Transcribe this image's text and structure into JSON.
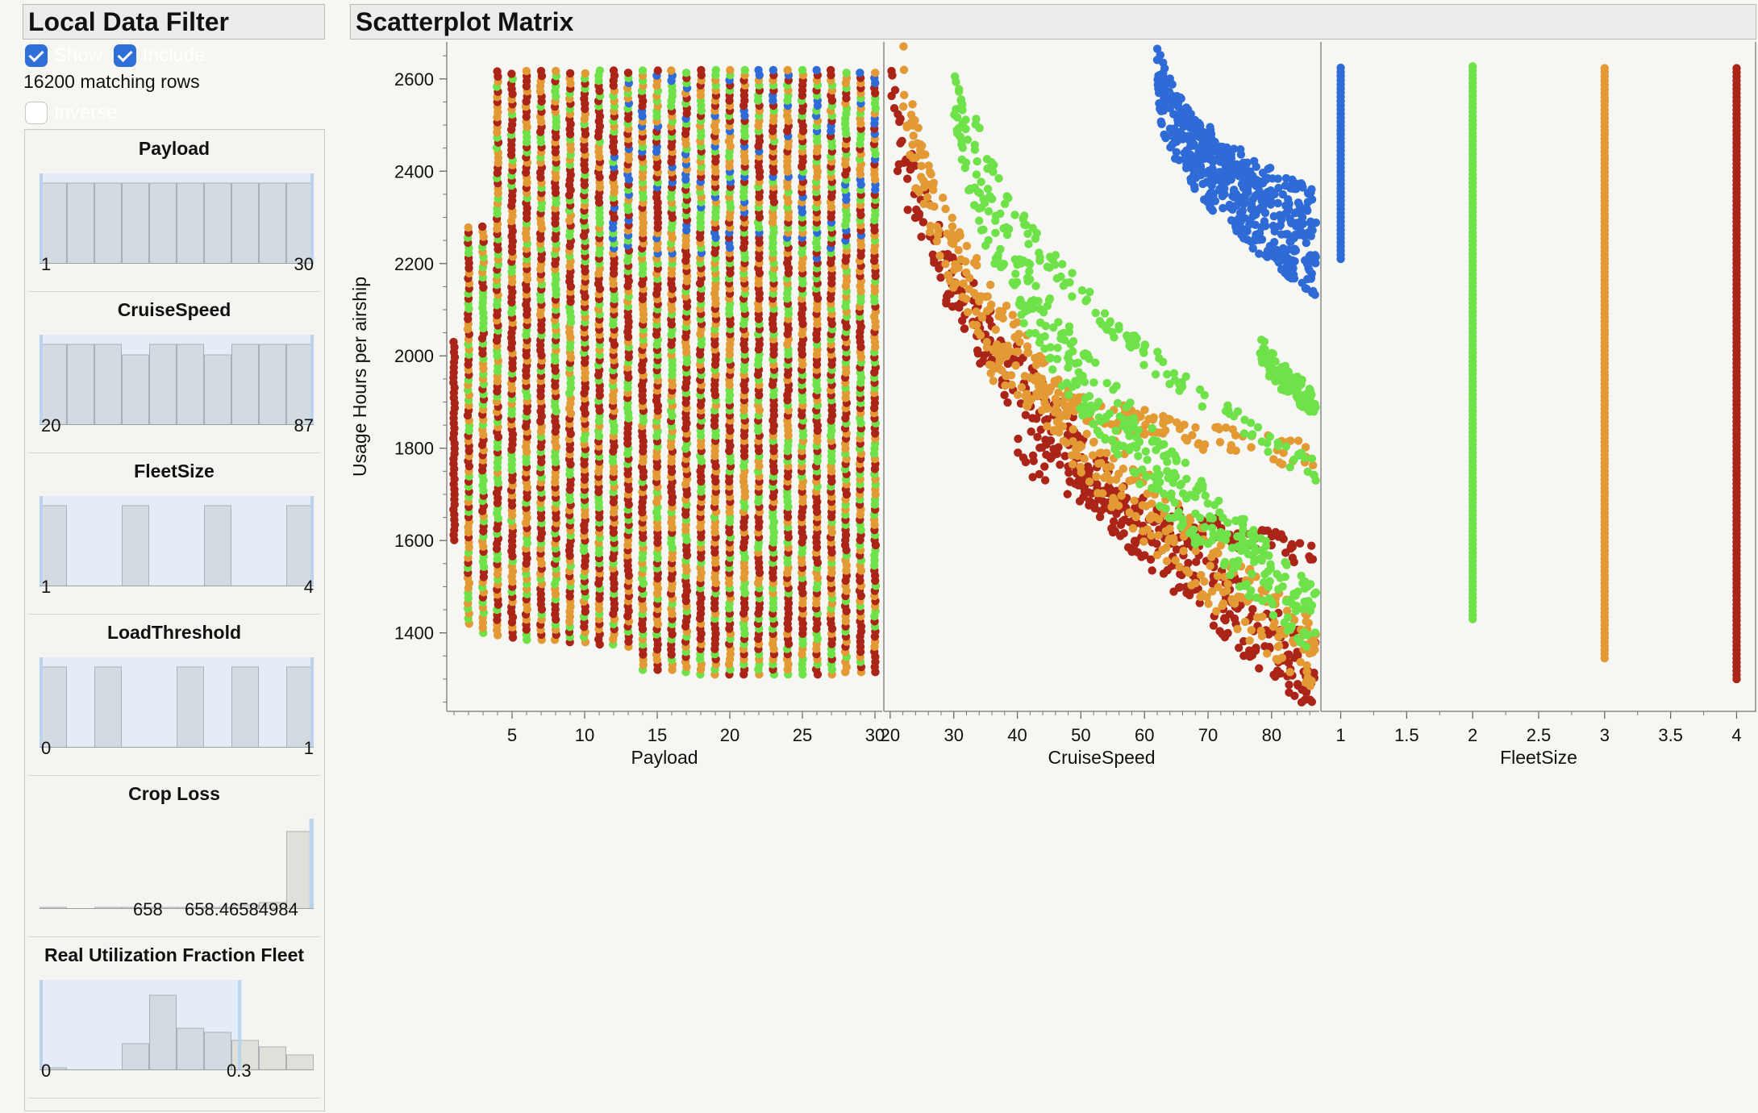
{
  "local_data_filter": {
    "title": "Local Data Filter",
    "show_label": "Show",
    "show_checked": true,
    "include_label": "Include",
    "include_checked": true,
    "matching_rows": "16200 matching rows",
    "inverse_label": "Inverse",
    "inverse_checked": false,
    "filters": [
      {
        "title": "Payload",
        "min_label": "1",
        "max_label": "30",
        "mid_labels": [],
        "bars": [
          1,
          1,
          1,
          1,
          1,
          1,
          1,
          1,
          1,
          1
        ],
        "selection": [
          0,
          1
        ]
      },
      {
        "title": "CruiseSpeed",
        "min_label": "20",
        "max_label": "87",
        "mid_labels": [],
        "bars": [
          1,
          1,
          1,
          0.87,
          1,
          1,
          0.87,
          1,
          1,
          1
        ],
        "selection": [
          0,
          1
        ]
      },
      {
        "title": "FleetSize",
        "min_label": "1",
        "max_label": "4",
        "mid_labels": [],
        "bars": [
          1,
          0,
          0,
          1,
          0,
          0,
          1,
          0,
          0,
          1
        ],
        "selection": [
          0,
          1
        ]
      },
      {
        "title": "LoadThreshold",
        "min_label": "0",
        "max_label": "1",
        "mid_labels": [],
        "bars": [
          1,
          0,
          1,
          0,
          0,
          1,
          0,
          1,
          0,
          1
        ],
        "selection": [
          0,
          1
        ]
      },
      {
        "title": "Crop Loss",
        "min_label": "",
        "max_label": "",
        "mid_labels": [
          "658",
          "658.46584984"
        ],
        "bars": [
          0.02,
          0,
          0.02,
          0.02,
          0.02,
          0.02,
          0.02,
          0.05,
          0.08,
          0.96
        ],
        "selection": [
          0.99,
          1
        ]
      },
      {
        "title": "Real Utilization Fraction Fleet",
        "min_label": "0",
        "max_label": "0.3",
        "mid_labels": [],
        "bars": [
          0.03,
          0,
          0,
          0.33,
          0.93,
          0.52,
          0.47,
          0.37,
          0.29,
          0.19
        ],
        "selection": [
          0,
          0.73
        ]
      }
    ]
  },
  "scatterplot_matrix": {
    "title": "Scatterplot Matrix",
    "colors": {
      "fleet1": "#2f6bd6",
      "fleet2": "#6fe24a",
      "fleet3": "#e39a35",
      "fleet4": "#ab2418"
    }
  },
  "chart_data": {
    "type": "scatter",
    "ylabel": "Usage Hours per airship",
    "ylim": [
      1230,
      2680
    ],
    "yticks": [
      1400,
      1600,
      1800,
      2000,
      2200,
      2400,
      2600
    ],
    "grid": false,
    "panels": [
      {
        "xlabel": "Payload",
        "xlim": [
          0.5,
          30.5
        ],
        "xticks": [
          5,
          10,
          15,
          20,
          25,
          30
        ]
      },
      {
        "xlabel": "CruiseSpeed",
        "xlim": [
          19,
          87.5
        ],
        "xticks": [
          20,
          30,
          40,
          50,
          60,
          70,
          80
        ]
      },
      {
        "xlabel": "FleetSize",
        "xlim": [
          0.85,
          4.15
        ],
        "xticks": [
          1,
          1.5,
          2,
          2.5,
          3,
          3.5,
          4
        ]
      }
    ],
    "series": [
      {
        "name": "1",
        "fleet_size": 1,
        "y_range": [
          2210,
          2630
        ],
        "cruise_speed_bands": [
          {
            "x": [
              62,
              87
            ],
            "y": [
              2630,
              2210
            ]
          },
          {
            "x": [
              62,
              87
            ],
            "y": [
              2630,
              2330
            ]
          }
        ]
      },
      {
        "name": "2",
        "fleet_size": 2,
        "y_range": [
          1430,
          2630
        ],
        "cruise_speed_bands": [
          {
            "x": [
              30,
              87
            ],
            "y": [
              2630,
              1430
            ]
          },
          {
            "x": [
              33,
              87
            ],
            "y": [
              2560,
              1750
            ]
          },
          {
            "x": [
              78,
              87
            ],
            "y": [
              2040,
              1900
            ]
          }
        ]
      },
      {
        "name": "3",
        "fleet_size": 3,
        "y_range": [
          1345,
          2630
        ],
        "cruise_speed_bands": [
          {
            "x": [
              22,
              87
            ],
            "y": [
              2630,
              1345
            ]
          },
          {
            "x": [
              35,
              87
            ],
            "y": [
              2000,
              1780
            ]
          }
        ]
      },
      {
        "name": "4",
        "fleet_size": 4,
        "y_range": [
          1300,
          2630
        ],
        "cruise_speed_bands": [
          {
            "x": [
              20,
              87
            ],
            "y": [
              2620,
              1300
            ]
          },
          {
            "x": [
              40,
              87
            ],
            "y": [
              1810,
              1570
            ]
          }
        ]
      }
    ],
    "payload_lower_y": [
      1590,
      1420,
      1400,
      1395,
      1390,
      1385,
      1385,
      1385,
      1380,
      1380,
      1375,
      1375,
      1370,
      1320,
      1320,
      1320,
      1315,
      1310,
      1310,
      1310,
      1310,
      1310,
      1310,
      1310,
      1310,
      1310,
      1310,
      1315,
      1315,
      1315
    ]
  }
}
